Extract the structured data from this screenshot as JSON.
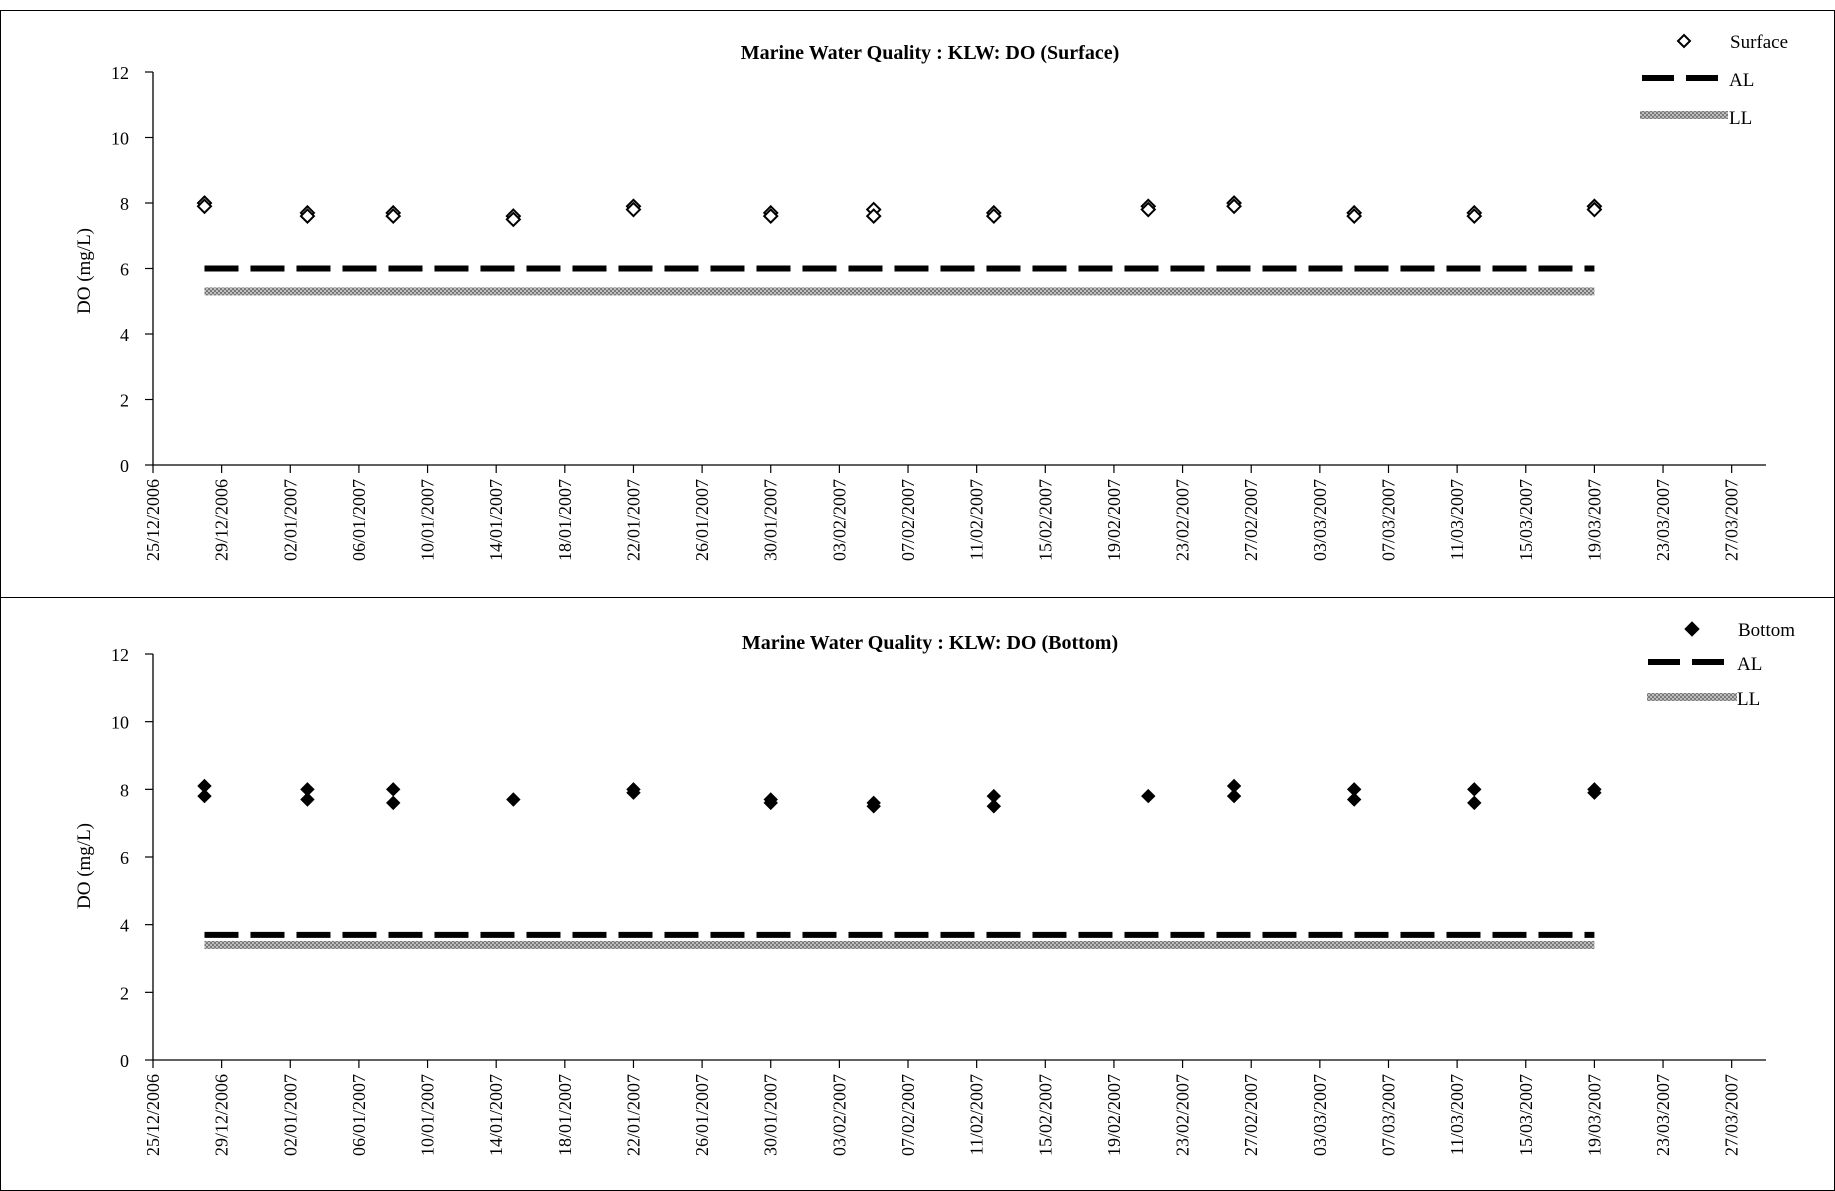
{
  "chart_data": [
    {
      "type": "scatter",
      "title": "Marine Water Quality : KLW: DO (Surface)",
      "xlabel": "",
      "ylabel": "DO (mg/L)",
      "ylim": [
        0,
        12
      ],
      "yticks": [
        "0",
        "2",
        "4",
        "6",
        "8",
        "10",
        "12"
      ],
      "xlim": [
        "25/12/2006",
        "29/03/2007"
      ],
      "xticks": [
        "25/12/2006",
        "29/12/2006",
        "02/01/2007",
        "06/01/2007",
        "10/01/2007",
        "14/01/2007",
        "18/01/2007",
        "22/01/2007",
        "26/01/2007",
        "30/01/2007",
        "03/02/2007",
        "07/02/2007",
        "11/02/2007",
        "15/02/2007",
        "19/02/2007",
        "23/02/2007",
        "27/02/2007",
        "03/03/2007",
        "07/03/2007",
        "11/03/2007",
        "15/03/2007",
        "19/03/2007",
        "23/03/2007",
        "27/03/2007"
      ],
      "legend_position": "top-right",
      "series": [
        {
          "name": "Surface",
          "marker": "hollow-diamond",
          "color": "#000000",
          "points": [
            {
              "x": "28/12/2006",
              "y": 8.0
            },
            {
              "x": "28/12/2006",
              "y": 7.9
            },
            {
              "x": "03/01/2007",
              "y": 7.7
            },
            {
              "x": "03/01/2007",
              "y": 7.6
            },
            {
              "x": "08/01/2007",
              "y": 7.7
            },
            {
              "x": "08/01/2007",
              "y": 7.6
            },
            {
              "x": "15/01/2007",
              "y": 7.6
            },
            {
              "x": "15/01/2007",
              "y": 7.5
            },
            {
              "x": "22/01/2007",
              "y": 7.9
            },
            {
              "x": "22/01/2007",
              "y": 7.8
            },
            {
              "x": "30/01/2007",
              "y": 7.7
            },
            {
              "x": "30/01/2007",
              "y": 7.6
            },
            {
              "x": "05/02/2007",
              "y": 7.8
            },
            {
              "x": "05/02/2007",
              "y": 7.6
            },
            {
              "x": "12/02/2007",
              "y": 7.7
            },
            {
              "x": "12/02/2007",
              "y": 7.6
            },
            {
              "x": "21/02/2007",
              "y": 7.9
            },
            {
              "x": "21/02/2007",
              "y": 7.8
            },
            {
              "x": "26/02/2007",
              "y": 8.0
            },
            {
              "x": "26/02/2007",
              "y": 7.9
            },
            {
              "x": "05/03/2007",
              "y": 7.7
            },
            {
              "x": "05/03/2007",
              "y": 7.6
            },
            {
              "x": "12/03/2007",
              "y": 7.7
            },
            {
              "x": "12/03/2007",
              "y": 7.6
            },
            {
              "x": "19/03/2007",
              "y": 7.9
            },
            {
              "x": "19/03/2007",
              "y": 7.8
            }
          ]
        },
        {
          "name": "AL",
          "style": "dashed",
          "color": "#000000",
          "points": [
            {
              "x": "28/12/2006",
              "y": 6.0
            },
            {
              "x": "19/03/2007",
              "y": 6.0
            }
          ]
        },
        {
          "name": "LL",
          "style": "thick",
          "color": "#999999",
          "points": [
            {
              "x": "28/12/2006",
              "y": 5.3
            },
            {
              "x": "19/03/2007",
              "y": 5.3
            }
          ]
        }
      ]
    },
    {
      "type": "scatter",
      "title": "Marine Water Quality : KLW: DO (Bottom)",
      "xlabel": "",
      "ylabel": "DO (mg/L)",
      "ylim": [
        0,
        12
      ],
      "yticks": [
        "0",
        "2",
        "4",
        "6",
        "8",
        "10",
        "12"
      ],
      "xlim": [
        "25/12/2006",
        "29/03/2007"
      ],
      "xticks": [
        "25/12/2006",
        "29/12/2006",
        "02/01/2007",
        "06/01/2007",
        "10/01/2007",
        "14/01/2007",
        "18/01/2007",
        "22/01/2007",
        "26/01/2007",
        "30/01/2007",
        "03/02/2007",
        "07/02/2007",
        "11/02/2007",
        "15/02/2007",
        "19/02/2007",
        "23/02/2007",
        "27/02/2007",
        "03/03/2007",
        "07/03/2007",
        "11/03/2007",
        "15/03/2007",
        "19/03/2007",
        "23/03/2007",
        "27/03/2007"
      ],
      "legend_position": "top-right",
      "series": [
        {
          "name": "Bottom",
          "marker": "filled-diamond",
          "color": "#000000",
          "points": [
            {
              "x": "28/12/2006",
              "y": 8.1
            },
            {
              "x": "28/12/2006",
              "y": 7.8
            },
            {
              "x": "03/01/2007",
              "y": 8.0
            },
            {
              "x": "03/01/2007",
              "y": 7.7
            },
            {
              "x": "08/01/2007",
              "y": 8.0
            },
            {
              "x": "08/01/2007",
              "y": 7.6
            },
            {
              "x": "15/01/2007",
              "y": 7.7
            },
            {
              "x": "22/01/2007",
              "y": 8.0
            },
            {
              "x": "22/01/2007",
              "y": 7.9
            },
            {
              "x": "30/01/2007",
              "y": 7.7
            },
            {
              "x": "30/01/2007",
              "y": 7.6
            },
            {
              "x": "05/02/2007",
              "y": 7.6
            },
            {
              "x": "05/02/2007",
              "y": 7.5
            },
            {
              "x": "12/02/2007",
              "y": 7.8
            },
            {
              "x": "12/02/2007",
              "y": 7.5
            },
            {
              "x": "21/02/2007",
              "y": 7.8
            },
            {
              "x": "26/02/2007",
              "y": 8.1
            },
            {
              "x": "26/02/2007",
              "y": 7.8
            },
            {
              "x": "05/03/2007",
              "y": 8.0
            },
            {
              "x": "05/03/2007",
              "y": 7.7
            },
            {
              "x": "12/03/2007",
              "y": 8.0
            },
            {
              "x": "12/03/2007",
              "y": 7.6
            },
            {
              "x": "19/03/2007",
              "y": 8.0
            },
            {
              "x": "19/03/2007",
              "y": 7.9
            }
          ]
        },
        {
          "name": "AL",
          "style": "dashed",
          "color": "#000000",
          "points": [
            {
              "x": "28/12/2006",
              "y": 3.7
            },
            {
              "x": "19/03/2007",
              "y": 3.7
            }
          ]
        },
        {
          "name": "LL",
          "style": "thick",
          "color": "#999999",
          "points": [
            {
              "x": "28/12/2006",
              "y": 3.4
            },
            {
              "x": "19/03/2007",
              "y": 3.4
            }
          ]
        }
      ]
    }
  ]
}
